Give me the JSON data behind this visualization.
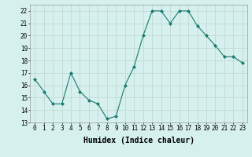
{
  "x": [
    0,
    1,
    2,
    3,
    4,
    5,
    6,
    7,
    8,
    9,
    10,
    11,
    12,
    13,
    14,
    15,
    16,
    17,
    18,
    19,
    20,
    21,
    22,
    23
  ],
  "y": [
    16.5,
    15.5,
    14.5,
    14.5,
    17.0,
    15.5,
    14.8,
    14.5,
    13.3,
    13.5,
    16.0,
    17.5,
    20.0,
    22.0,
    22.0,
    21.0,
    22.0,
    22.0,
    20.8,
    20.0,
    19.2,
    18.3,
    18.3,
    17.8
  ],
  "xlabel": "Humidex (Indice chaleur)",
  "ylabel": "",
  "ylim": [
    13,
    22.5
  ],
  "xlim": [
    -0.5,
    23.5
  ],
  "yticks": [
    13,
    14,
    15,
    16,
    17,
    18,
    19,
    20,
    21,
    22
  ],
  "xticks": [
    0,
    1,
    2,
    3,
    4,
    5,
    6,
    7,
    8,
    9,
    10,
    11,
    12,
    13,
    14,
    15,
    16,
    17,
    18,
    19,
    20,
    21,
    22,
    23
  ],
  "line_color": "#1a7a6e",
  "marker": "D",
  "marker_size": 2,
  "bg_color": "#d6f0ee",
  "grid_color": "#c2d8d6",
  "tick_fontsize": 5.5,
  "xlabel_fontsize": 7
}
